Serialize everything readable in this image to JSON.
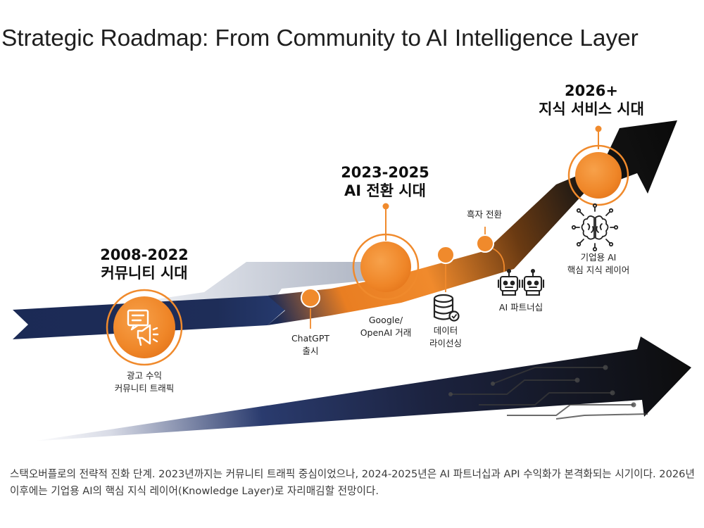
{
  "title": "Strategic Roadmap: From Community to AI Intelligence Layer",
  "phases": [
    {
      "period": "2008-2022",
      "name": "커뮤니티 시대"
    },
    {
      "period": "2023-2025",
      "name": "AI 전환 시대"
    },
    {
      "period": "2026+",
      "name": "지식 서비스 시대"
    }
  ],
  "milestones": {
    "ad_revenue": [
      "광고 수익",
      "커뮤니티 트래픽"
    ],
    "chatgpt": [
      "ChatGPT",
      "출시"
    ],
    "deals": [
      "Google/",
      "OpenAI 거래"
    ],
    "data_licensing": [
      "데이터",
      "라이선싱"
    ],
    "black_turn": [
      "흑자 전환"
    ],
    "ai_partnership": [
      "AI 파트너십"
    ],
    "core_layer": [
      "기업용 AI",
      "핵심 지식 레이어"
    ]
  },
  "icons": [
    "megaphone-icon",
    "database-icon",
    "robots-icon",
    "brain-icon"
  ],
  "colors": {
    "accent_orange": "#f08a2c",
    "navy": "#1b2a55",
    "black": "#111111"
  },
  "caption": "스택오버플로의 전략적 진화 단계. 2023년까지는 커뮤니티 트래픽 중심이었으나, 2024-2025년은 AI 파트너십과 API 수익화가 본격화되는 시기이다. 2026년 이후에는 기업용 AI의 핵심 지식 레이어(Knowledge Layer)로 자리매김할 전망이다."
}
